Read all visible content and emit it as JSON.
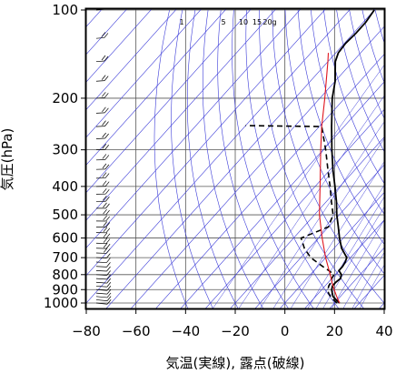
{
  "chart_data": {
    "type": "line",
    "title": "",
    "xlabel": "気温(実線), 露点(破線)",
    "ylabel": "気圧(hPa)",
    "xlim": [
      -80,
      40
    ],
    "ylim_pressure": [
      1050,
      100
    ],
    "yscale": "log",
    "xticks": [
      -80,
      -60,
      -40,
      -20,
      0,
      20,
      40
    ],
    "yticks": [
      100,
      200,
      300,
      400,
      500,
      600,
      700,
      800,
      900,
      1000
    ],
    "mixing_ratio_labels": [
      {
        "text": "1",
        "value": 1
      },
      {
        "text": "5",
        "value": 5
      },
      {
        "text": "10",
        "value": 10
      },
      {
        "text": "15",
        "value": 15
      },
      {
        "text": "20g",
        "value": 20
      }
    ],
    "skew_deg_per_decade": 106,
    "series": [
      {
        "style": "solid-black",
        "points": [
          [
            1000,
            22
          ],
          [
            975,
            19.5
          ],
          [
            950,
            17
          ],
          [
            925,
            15.5
          ],
          [
            900,
            14
          ],
          [
            875,
            13
          ],
          [
            850,
            13
          ],
          [
            825,
            13.5
          ],
          [
            800,
            12.5
          ],
          [
            775,
            10
          ],
          [
            750,
            10
          ],
          [
            725,
            9.5
          ],
          [
            700,
            8.5
          ],
          [
            650,
            3
          ],
          [
            600,
            -1.5
          ],
          [
            550,
            -6
          ],
          [
            500,
            -11
          ],
          [
            450,
            -16
          ],
          [
            400,
            -22
          ],
          [
            350,
            -29
          ],
          [
            300,
            -36.5
          ],
          [
            250,
            -45
          ],
          [
            200,
            -55
          ],
          [
            175,
            -60
          ],
          [
            150,
            -67
          ],
          [
            140,
            -69
          ],
          [
            130,
            -69.5
          ],
          [
            120,
            -69
          ],
          [
            110,
            -69
          ],
          [
            100,
            -70
          ]
        ]
      },
      {
        "style": "dashed-black",
        "points": [
          [
            1000,
            21
          ],
          [
            975,
            18.5
          ],
          [
            950,
            16
          ],
          [
            925,
            14
          ],
          [
            900,
            12.5
          ],
          [
            875,
            11.5
          ],
          [
            850,
            11
          ],
          [
            825,
            10
          ],
          [
            800,
            9.5
          ],
          [
            775,
            6
          ],
          [
            750,
            2
          ],
          [
            725,
            -2
          ],
          [
            700,
            -6
          ],
          [
            650,
            -12
          ],
          [
            600,
            -17
          ],
          [
            550,
            -10
          ],
          [
            500,
            -12.5
          ],
          [
            450,
            -18
          ],
          [
            400,
            -24
          ],
          [
            350,
            -31
          ],
          [
            300,
            -39
          ],
          [
            250,
            -49
          ],
          [
            248,
            -80
          ]
        ]
      },
      {
        "style": "solid-red",
        "points": [
          [
            1000,
            22
          ],
          [
            950,
            18.5
          ],
          [
            900,
            15
          ],
          [
            850,
            11.5
          ],
          [
            800,
            8
          ],
          [
            700,
            0
          ],
          [
            600,
            -8.5
          ],
          [
            500,
            -18
          ],
          [
            400,
            -28
          ],
          [
            300,
            -41
          ],
          [
            250,
            -49
          ],
          [
            200,
            -58
          ],
          [
            150,
            -70
          ],
          [
            140,
            -73
          ]
        ]
      }
    ],
    "wind_barbs_column_x_value": -76
  }
}
